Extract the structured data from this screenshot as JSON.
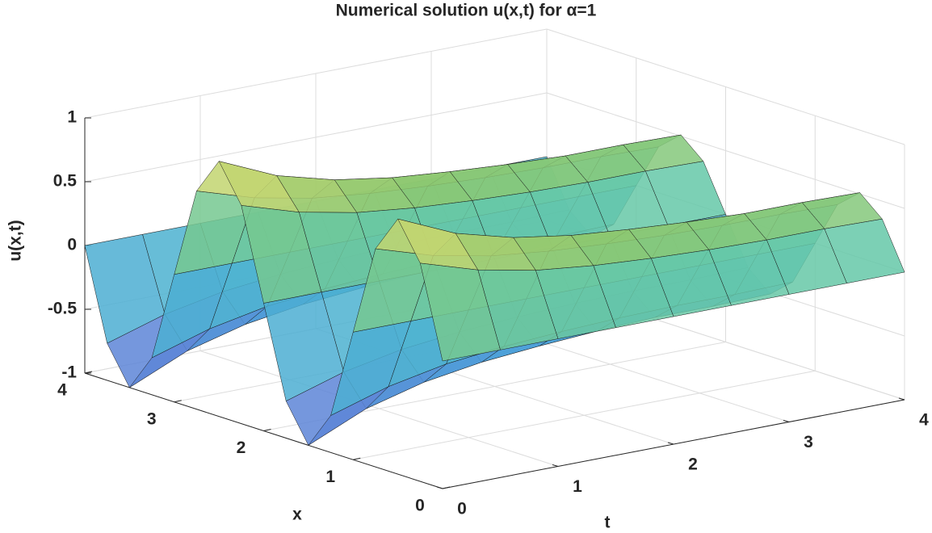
{
  "chart_data": {
    "type": "surface",
    "title": "Numerical solution u(x,t) for α=1",
    "xlabel": "x",
    "ylabel": "t",
    "zlabel": "u(x,t)",
    "x": [
      0,
      0.25,
      0.5,
      0.75,
      1,
      1.25,
      1.5,
      1.75,
      2,
      2.25,
      2.5,
      2.75,
      3,
      3.25,
      3.5,
      3.75,
      4
    ],
    "t": [
      0,
      0.5,
      1,
      1.5,
      2,
      2.5,
      3,
      3.5,
      4
    ],
    "values": [
      [
        0,
        0,
        0,
        0,
        0,
        0,
        0,
        0,
        0
      ],
      [
        0.71,
        0.57,
        0.48,
        0.43,
        0.4,
        0.38,
        0.37,
        0.37,
        0.36
      ],
      [
        1,
        0.8,
        0.68,
        0.61,
        0.57,
        0.54,
        0.52,
        0.52,
        0.51
      ],
      [
        0.71,
        0.57,
        0.48,
        0.43,
        0.4,
        0.38,
        0.37,
        0.37,
        0.36
      ],
      [
        0,
        0,
        0,
        0,
        0,
        0,
        0,
        0,
        0
      ],
      [
        -0.71,
        -0.57,
        -0.48,
        -0.43,
        -0.4,
        -0.38,
        -0.37,
        -0.37,
        -0.36
      ],
      [
        -1,
        -0.8,
        -0.68,
        -0.61,
        -0.57,
        -0.54,
        -0.52,
        -0.52,
        -0.51
      ],
      [
        -0.71,
        -0.57,
        -0.48,
        -0.43,
        -0.4,
        -0.38,
        -0.37,
        -0.37,
        -0.36
      ],
      [
        0,
        0,
        0,
        0,
        0,
        0,
        0,
        0,
        0
      ],
      [
        0.71,
        0.57,
        0.48,
        0.43,
        0.4,
        0.38,
        0.37,
        0.37,
        0.36
      ],
      [
        1,
        0.8,
        0.68,
        0.61,
        0.57,
        0.54,
        0.52,
        0.52,
        0.51
      ],
      [
        0.71,
        0.57,
        0.48,
        0.43,
        0.4,
        0.38,
        0.37,
        0.37,
        0.36
      ],
      [
        0,
        0,
        0,
        0,
        0,
        0,
        0,
        0,
        0
      ],
      [
        -0.71,
        -0.57,
        -0.48,
        -0.43,
        -0.4,
        -0.38,
        -0.37,
        -0.37,
        -0.36
      ],
      [
        -1,
        -0.8,
        -0.68,
        -0.61,
        -0.57,
        -0.54,
        -0.52,
        -0.52,
        -0.51
      ],
      [
        -0.71,
        -0.57,
        -0.48,
        -0.43,
        -0.4,
        -0.38,
        -0.37,
        -0.37,
        -0.36
      ],
      [
        0,
        0,
        0,
        0,
        0,
        0,
        0,
        0,
        0
      ]
    ],
    "xlim": [
      0,
      4
    ],
    "xticks": [
      0,
      1,
      2,
      3,
      4
    ],
    "ylim": [
      0,
      4
    ],
    "yticks": [
      0,
      1,
      2,
      3,
      4
    ],
    "zlim": [
      -1,
      1
    ],
    "zticks": [
      -1,
      -0.5,
      0,
      0.5,
      1
    ],
    "grid": true
  }
}
